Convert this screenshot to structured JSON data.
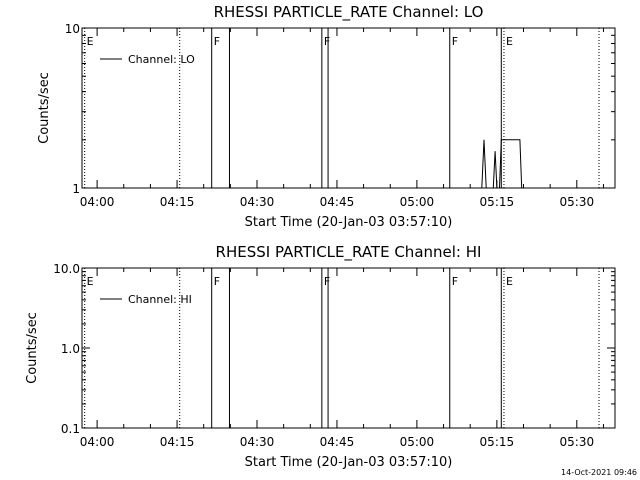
{
  "footer": {
    "timestamp": "14-Oct-2021 09:46"
  },
  "chart_data": [
    {
      "type": "line",
      "title": "RHESSI PARTICLE_RATE Channel: LO",
      "xlabel": "Start Time (20-Jan-03 03:57:10)",
      "ylabel": "Counts/sec",
      "y_scale": "log",
      "ylim": [
        1,
        10
      ],
      "xlim": [
        "03:57:10",
        "05:37:10"
      ],
      "x_ticks": [
        "04:00",
        "04:15",
        "04:30",
        "04:45",
        "05:00",
        "05:15",
        "05:30"
      ],
      "y_ticks": [
        "1",
        "10"
      ],
      "legend": {
        "position": "top-left",
        "entries": [
          "Channel: LO"
        ]
      },
      "series": [
        {
          "name": "Channel: LO",
          "points": [
            [
              "05:12:10",
              1.0
            ],
            [
              "05:12:35",
              2.0
            ],
            [
              "05:13:00",
              1.0
            ],
            [
              "05:14:20",
              1.0
            ],
            [
              "05:14:40",
              1.7
            ],
            [
              "05:15:00",
              1.0
            ],
            [
              "05:15:30",
              1.0
            ],
            [
              "05:15:50",
              2.0
            ],
            [
              "05:19:20",
              2.0
            ],
            [
              "05:19:40",
              1.0
            ]
          ]
        }
      ],
      "markers": [
        {
          "time": "03:57:40",
          "label": "E",
          "style": "dotted"
        },
        {
          "time": "04:15:30",
          "label": "",
          "style": "dotted"
        },
        {
          "time": "04:21:30",
          "label": "F",
          "style": "solid"
        },
        {
          "time": "04:24:50",
          "label": "",
          "style": "solid"
        },
        {
          "time": "04:42:10",
          "label": "F",
          "style": "solid"
        },
        {
          "time": "04:43:20",
          "label": "",
          "style": "solid"
        },
        {
          "time": "05:06:10",
          "label": "F",
          "style": "solid"
        },
        {
          "time": "05:15:50",
          "label": "",
          "style": "solid"
        },
        {
          "time": "05:16:20",
          "label": "E",
          "style": "dotted"
        },
        {
          "time": "05:34:10",
          "label": "",
          "style": "dotted"
        }
      ]
    },
    {
      "type": "line",
      "title": "RHESSI PARTICLE_RATE Channel: HI",
      "xlabel": "Start Time (20-Jan-03 03:57:10)",
      "ylabel": "Counts/sec",
      "y_scale": "log",
      "ylim": [
        0.1,
        10.0
      ],
      "xlim": [
        "03:57:10",
        "05:37:10"
      ],
      "x_ticks": [
        "04:00",
        "04:15",
        "04:30",
        "04:45",
        "05:00",
        "05:15",
        "05:30"
      ],
      "y_ticks": [
        "0.1",
        "1.0",
        "10.0"
      ],
      "legend": {
        "position": "top-left",
        "entries": [
          "Channel: HI"
        ]
      },
      "series": [
        {
          "name": "Channel: HI",
          "points": []
        }
      ],
      "markers": [
        {
          "time": "03:57:40",
          "label": "E",
          "style": "dotted"
        },
        {
          "time": "04:15:30",
          "label": "",
          "style": "dotted"
        },
        {
          "time": "04:21:30",
          "label": "F",
          "style": "solid"
        },
        {
          "time": "04:24:50",
          "label": "",
          "style": "solid"
        },
        {
          "time": "04:42:10",
          "label": "F",
          "style": "solid"
        },
        {
          "time": "04:43:20",
          "label": "",
          "style": "solid"
        },
        {
          "time": "05:06:10",
          "label": "F",
          "style": "solid"
        },
        {
          "time": "05:15:50",
          "label": "",
          "style": "solid"
        },
        {
          "time": "05:16:20",
          "label": "E",
          "style": "dotted"
        },
        {
          "time": "05:34:10",
          "label": "",
          "style": "dotted"
        }
      ]
    }
  ]
}
